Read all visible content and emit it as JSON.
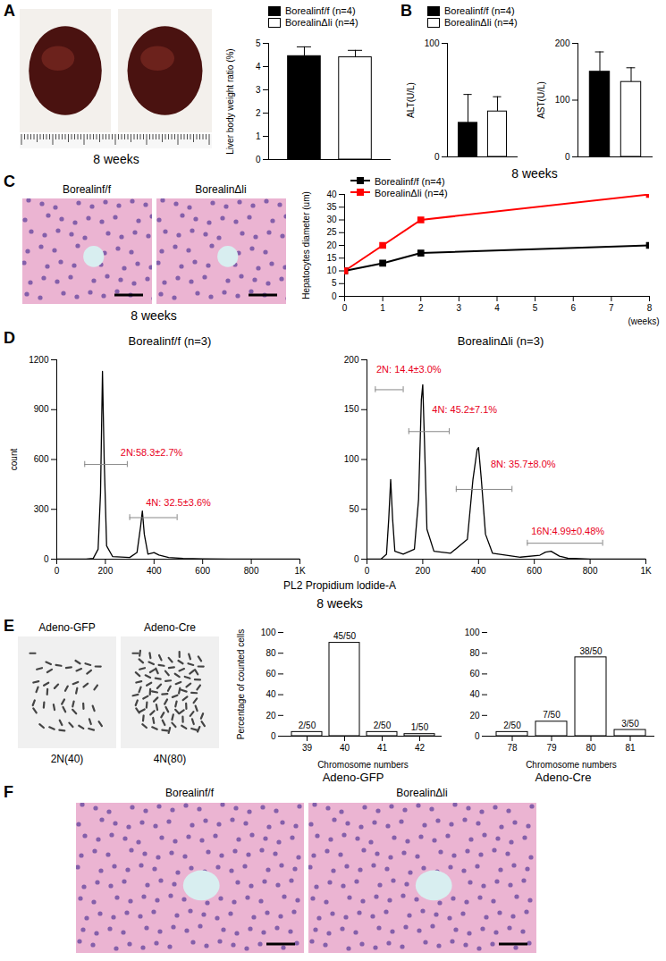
{
  "panels": {
    "A": {
      "caption": "8 weeks"
    },
    "B": {
      "caption": "8 weeks"
    },
    "C": {
      "image_labels": [
        "Borealinf/f",
        "BorealinΔli"
      ],
      "caption": "8 weeks"
    },
    "D": {
      "x_label": "PL2 Propidium lodide-A",
      "caption": "8 weeks"
    },
    "E": {
      "image_labels": [
        "Adeno-GFP",
        "Adeno-Cre"
      ],
      "image_captions": [
        "2N(40)",
        "4N(80)"
      ]
    },
    "F": {
      "image_labels": [
        "Borealinf/f",
        "BorealinΔli"
      ]
    }
  },
  "chart_data": [
    {
      "panel": "A",
      "type": "bar",
      "ylabel": "Liver body weight ratio (%)",
      "ylim": [
        0,
        5
      ],
      "yticks": [
        0,
        1,
        2,
        3,
        4,
        5
      ],
      "tick_labels": "y",
      "legend": "top",
      "series": [
        {
          "name": "Borealinf/f (n=4)",
          "color": "#000000",
          "values": [
            4.45
          ],
          "errors": [
            0.4
          ]
        },
        {
          "name": "BorealinΔli (n=4)",
          "color": "#ffffff",
          "values": [
            4.4
          ],
          "errors": [
            0.3
          ]
        }
      ]
    },
    {
      "panel": "B",
      "type": "bar",
      "ylabel": "ALT(U/L)",
      "ylim": [
        0,
        100
      ],
      "yticks": [
        0,
        100
      ],
      "tick_labels": "y",
      "legend": "top",
      "series": [
        {
          "name": "Borealinf/f (n=4)",
          "color": "#000000",
          "values": [
            30
          ],
          "errors": [
            25
          ]
        },
        {
          "name": "BorealinΔli (n=4)",
          "color": "#ffffff",
          "values": [
            40
          ],
          "errors": [
            13
          ]
        }
      ]
    },
    {
      "panel": "B",
      "type": "bar",
      "ylabel": "AST(U/L)",
      "ylim": [
        0,
        200
      ],
      "yticks": [
        0,
        100,
        200
      ],
      "tick_labels": "y",
      "series": [
        {
          "name": "Borealinf/f (n=4)",
          "color": "#000000",
          "values": [
            150
          ],
          "errors": [
            35
          ]
        },
        {
          "name": "BorealinΔli (n=4)",
          "color": "#ffffff",
          "values": [
            132
          ],
          "errors": [
            25
          ]
        }
      ]
    },
    {
      "panel": "C",
      "type": "line",
      "ylabel": "Hepatocytes diameter (um)",
      "xlabel": "(weeks)",
      "x": [
        0,
        1,
        2,
        8
      ],
      "xlim": [
        0,
        8
      ],
      "xticks": [
        0,
        1,
        2,
        3,
        4,
        5,
        6,
        7,
        8
      ],
      "ylim": [
        0,
        40
      ],
      "yticks": [
        0,
        5,
        10,
        15,
        20,
        25,
        30,
        35,
        40
      ],
      "legend": "top-left",
      "marker": "square",
      "series": [
        {
          "name": "Borealinf/f (n=4)",
          "color": "#000000",
          "values": [
            10,
            13,
            17,
            20
          ]
        },
        {
          "name": "BorealinΔli (n=4)",
          "color": "#ff0000",
          "values": [
            10,
            20,
            30,
            40
          ]
        }
      ]
    },
    {
      "panel": "D",
      "type": "line",
      "title": "Borealinf/f (n=3)",
      "ylabel": "count",
      "color": "#000000",
      "x": [
        0,
        120,
        150,
        170,
        180,
        188,
        195,
        205,
        230,
        300,
        330,
        345,
        352,
        360,
        375,
        400,
        420,
        460,
        520,
        600,
        800,
        1000
      ],
      "values": [
        0,
        0,
        5,
        60,
        400,
        1130,
        600,
        80,
        15,
        10,
        40,
        200,
        290,
        150,
        30,
        40,
        25,
        10,
        5,
        2,
        0,
        0
      ],
      "xlim": [
        0,
        1000
      ],
      "xticks": [
        0,
        200,
        400,
        600,
        800,
        {
          "value": 1000,
          "label": "1K"
        }
      ],
      "ylim": [
        0,
        1200
      ],
      "yticks": [
        0,
        300,
        600,
        900,
        1200
      ],
      "annotations": [
        {
          "text": "2N:58.3±2.7%",
          "x": 390,
          "y": 640,
          "gate": [
            115,
            290
          ],
          "gate_y": 570
        },
        {
          "text": "4N: 32.5±3.6%",
          "x": 500,
          "y": 340,
          "gate": [
            300,
            495
          ],
          "gate_y": 250
        }
      ]
    },
    {
      "panel": "D",
      "type": "line",
      "title": "BorealinΔli (n=3)",
      "color": "#000000",
      "x": [
        0,
        50,
        70,
        78,
        85,
        92,
        100,
        130,
        170,
        185,
        195,
        200,
        206,
        215,
        240,
        300,
        360,
        380,
        395,
        400,
        410,
        425,
        450,
        550,
        620,
        640,
        660,
        690,
        720,
        800,
        1000
      ],
      "values": [
        0,
        0,
        5,
        40,
        80,
        40,
        8,
        5,
        10,
        60,
        160,
        175,
        120,
        30,
        8,
        6,
        20,
        80,
        110,
        112,
        80,
        25,
        6,
        2,
        4,
        7,
        8,
        3,
        1,
        0,
        0
      ],
      "xlim": [
        0,
        1000
      ],
      "xticks": [
        0,
        200,
        400,
        600,
        800,
        {
          "value": 1000,
          "label": "1K"
        }
      ],
      "ylim": [
        0,
        200
      ],
      "yticks": [
        0,
        50,
        100,
        150,
        200
      ],
      "annotations": [
        {
          "text": "2N: 14.4±3.0%",
          "x": 150,
          "y": 190,
          "gate": [
            30,
            130
          ],
          "gate_y": 170
        },
        {
          "text": "4N: 45.2±7.1%",
          "x": 350,
          "y": 150,
          "gate": [
            150,
            295
          ],
          "gate_y": 128
        },
        {
          "text": "8N: 35.7±8.0%",
          "x": 560,
          "y": 95,
          "gate": [
            320,
            520
          ],
          "gate_y": 70
        },
        {
          "text": "16N:4.99±0.48%",
          "x": 720,
          "y": 28,
          "gate": [
            575,
            845
          ],
          "gate_y": 16
        }
      ]
    },
    {
      "panel": "E",
      "type": "bar",
      "title": "Adeno-GFP",
      "xlabel": "Chromosome numbers",
      "ylabel": "Percentage of counted cells",
      "categories": [
        "39",
        "40",
        "41",
        "42"
      ],
      "values": [
        4,
        90,
        4,
        2
      ],
      "value_labels": [
        "2/50",
        "45/50",
        "2/50",
        "1/50"
      ],
      "data_labels": true,
      "color": "#ffffff",
      "ylim": [
        0,
        100
      ],
      "yticks": [
        0,
        20,
        40,
        60,
        80,
        100
      ]
    },
    {
      "panel": "E",
      "type": "bar",
      "title": "Adeno-Cre",
      "xlabel": "Chromosome numbers",
      "categories": [
        "78",
        "79",
        "80",
        "81"
      ],
      "values": [
        4,
        14,
        76,
        6
      ],
      "value_labels": [
        "2/50",
        "7/50",
        "38/50",
        "3/50"
      ],
      "data_labels": true,
      "color": "#ffffff",
      "ylim": [
        0,
        100
      ],
      "yticks": [
        0,
        20,
        40,
        60,
        80,
        100
      ]
    }
  ]
}
